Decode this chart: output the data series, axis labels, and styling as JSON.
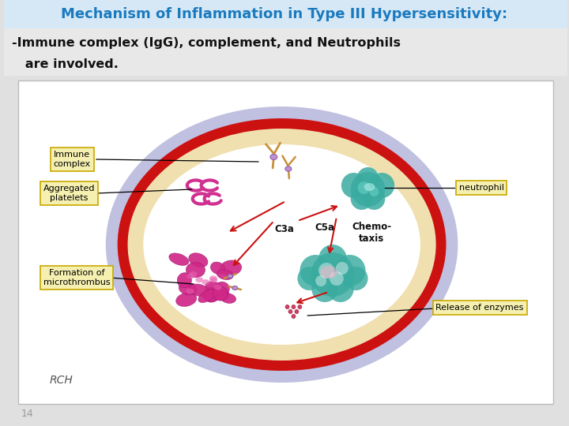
{
  "title": "Mechanism of Inflammation in Type III Hypersensitivity:",
  "subtitle_line1": "-Immune complex (IgG), complement, and Neutrophils",
  "subtitle_line2": "   are involved.",
  "title_color": "#1a7abf",
  "title_bg": "#d6e8f5",
  "subtitle_bg": "#e8e8e8",
  "page_bg": "#e0e0e0",
  "diagram_bg": "#ffffff",
  "page_number": "14",
  "label_immune_complex": "Immune\ncomplex",
  "label_aggregated": "Aggregated\nplatelets",
  "label_formation": "Formation of\nmicrothrombus",
  "label_neutrophil": "neutrophil",
  "label_release": "Release of enzymes",
  "label_c3a": "C3a",
  "label_c5a": "C5a",
  "label_chemotaxis": "Chemo-\ntaxis",
  "label_rch": "RCH",
  "red_ring_color": "#cc1111",
  "cream_color": "#f0e0b0",
  "lavender_color": "#c0c0e0",
  "inner_white": "#ffffff",
  "teal_color": "#3aaba0",
  "magenta_color": "#d03090",
  "tan_color": "#c8913a",
  "purple_color": "#c090d0",
  "label_bg": "#f5f0b0",
  "label_border": "#c8a800"
}
